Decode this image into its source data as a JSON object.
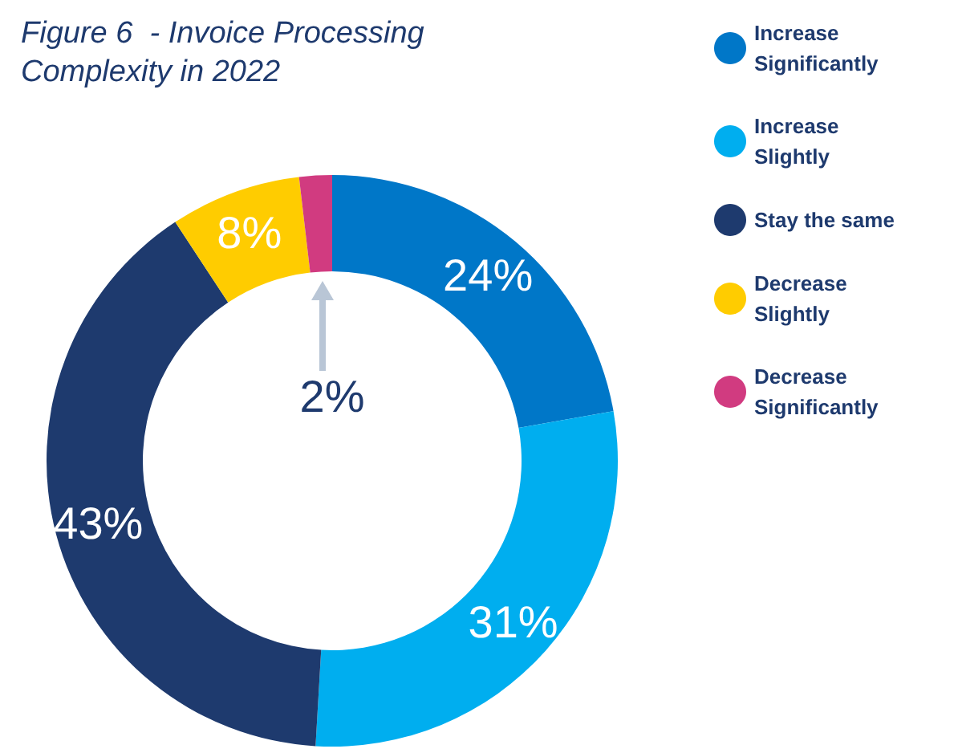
{
  "chart_data": {
    "type": "donut",
    "title": "Figure 6  - Invoice Processing Complexity in 2022",
    "categories": [
      "Increase Significantly",
      "Increase Slightly",
      "Stay the same",
      "Decrease Slightly",
      "Decrease Significantly"
    ],
    "values": [
      24,
      31,
      43,
      8,
      2
    ],
    "colors": [
      "#0077c8",
      "#00aeef",
      "#1e3a6e",
      "#ffcc00",
      "#d13b80"
    ],
    "value_labels": [
      "24%",
      "31%",
      "43%",
      "8%",
      "2%"
    ],
    "legend": "right"
  }
}
